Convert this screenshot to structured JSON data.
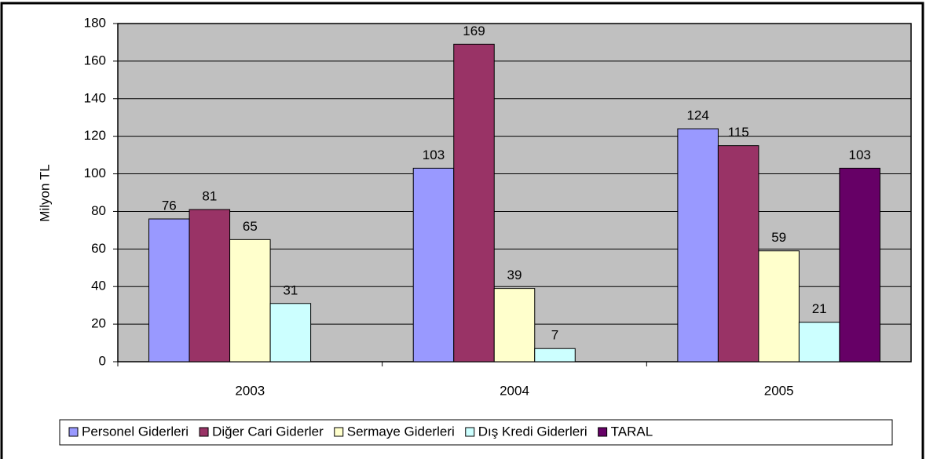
{
  "chart_data": {
    "type": "bar",
    "y_label": "Milyon TL",
    "categories": [
      "2003",
      "2004",
      "2005"
    ],
    "series": [
      {
        "name": "Personel Giderleri",
        "color": "#9999ff",
        "values": [
          76,
          103,
          124
        ]
      },
      {
        "name": "Diğer Cari Giderler",
        "color": "#993366",
        "values": [
          81,
          169,
          115
        ]
      },
      {
        "name": "Sermaye Giderleri",
        "color": "#ffffcc",
        "values": [
          65,
          39,
          59
        ]
      },
      {
        "name": "Dış Kredi Giderleri",
        "color": "#ccffff",
        "values": [
          31,
          7,
          21
        ]
      },
      {
        "name": "TARAL",
        "color": "#660066",
        "values": [
          null,
          null,
          103
        ]
      }
    ],
    "ylim": [
      0,
      180
    ],
    "yticks": [
      0,
      20,
      40,
      60,
      80,
      100,
      120,
      140,
      160,
      180
    ],
    "grid": true,
    "plot_background": "#c0c0c0",
    "legend": "bottom"
  }
}
